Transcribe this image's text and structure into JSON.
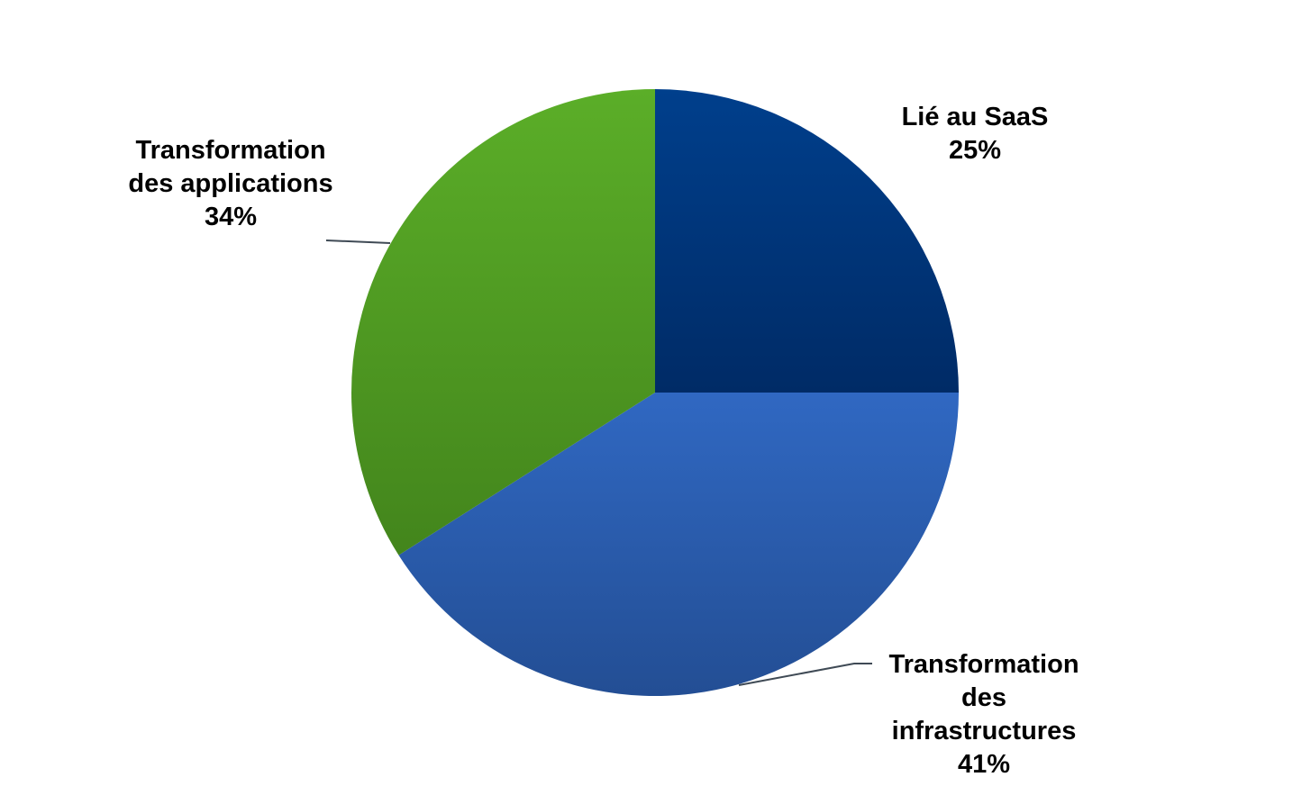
{
  "chart_data": {
    "type": "pie",
    "start_angle_deg": 0,
    "direction": "clockwise",
    "slices": [
      {
        "label_lines": [
          "Lié au SaaS"
        ],
        "value": 25,
        "value_label": "25%",
        "color_top": "#003F8C",
        "color_bottom": "#002B66"
      },
      {
        "label_lines": [
          "Transformation",
          "des",
          "infrastructures"
        ],
        "value": 41,
        "value_label": "41%",
        "color_top": "#3068C2",
        "color_bottom": "#234E94"
      },
      {
        "label_lines": [
          "Transformation",
          "des applications"
        ],
        "value": 34,
        "value_label": "34%",
        "color_top": "#5BAE28",
        "color_bottom": "#43851C"
      }
    ],
    "leader_line_color": "#3F4A55"
  }
}
